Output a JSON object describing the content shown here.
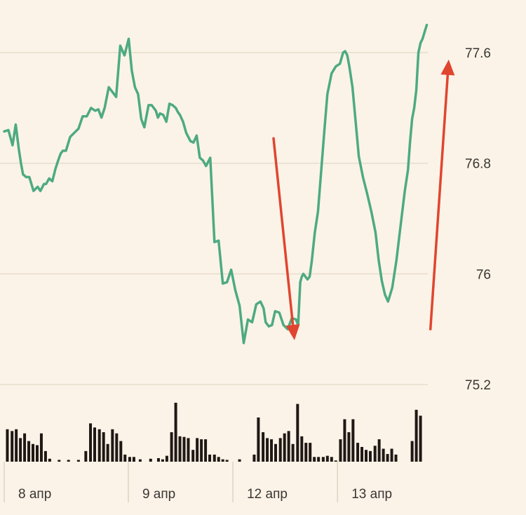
{
  "chart_data": {
    "type": "line",
    "title": "",
    "xlabel": "",
    "ylabel": "",
    "ylim": [
      75.2,
      77.6
    ],
    "yticks": [
      75.2,
      76,
      76.8,
      77.6
    ],
    "ytick_labels": [
      "75.2",
      "76",
      "76.8",
      "77.6"
    ],
    "grid": true,
    "x_label_ticks": [
      {
        "label": "8 апр",
        "x": 4
      },
      {
        "label": "9 апр",
        "x": 24
      },
      {
        "label": "12 апр",
        "x": 44
      },
      {
        "label": "13 апр",
        "x": 64
      }
    ],
    "x_range": [
      0,
      81
    ],
    "series": [
      {
        "color": "#4daa82",
        "x": [
          0,
          0.8,
          1.6,
          2.2,
          2.8,
          3.2,
          3.6,
          4.2,
          4.8,
          5.6,
          6.4,
          6.9,
          7.2,
          7.6,
          8,
          8.6,
          9.2,
          9.8,
          10.4,
          10.8,
          11.2,
          11.8,
          12.6,
          13.4,
          14.2,
          15,
          15.8,
          16.6,
          17.4,
          18,
          18.6,
          19.2,
          20,
          20.6,
          21.4,
          22.2,
          23,
          23.8,
          24.4,
          25,
          25.6,
          26.2,
          26.8,
          27.6,
          28.2,
          29,
          29.4,
          29.8,
          30.4,
          31,
          31.6,
          32.2,
          32.8,
          33.2,
          33.6,
          34.2,
          34.8,
          35.6,
          36.2,
          36.8,
          37.4,
          38,
          38.6,
          39.4,
          40.2,
          41,
          41.8,
          42.6,
          43.4,
          44.2,
          45,
          45.8,
          46.6,
          47.4,
          48.2,
          49,
          49.6,
          50,
          50.6,
          51.2,
          51.8,
          52.6,
          53.4,
          54.2,
          55,
          55.8,
          56.2,
          56.6,
          56.9,
          57.2,
          57.6,
          58,
          58.4,
          58.8,
          59.4,
          60,
          60.6,
          61.2,
          61.8,
          62.6,
          63.4,
          64.2,
          64.8,
          65.2,
          65.6,
          66,
          66.6,
          67.2,
          67.8,
          68.6,
          69.4,
          70.2,
          71,
          71.6,
          72.2,
          72.8,
          73.4,
          74.2,
          75,
          75.8,
          76.6,
          77.2,
          77.6,
          78,
          78.4,
          78.8,
          79.2,
          79.6,
          80,
          80.4,
          80.8
        ],
        "y": [
          77.03,
          77.04,
          76.93,
          77.08,
          76.9,
          76.8,
          76.72,
          76.7,
          76.7,
          76.6,
          76.63,
          76.6,
          76.62,
          76.65,
          76.65,
          76.69,
          76.67,
          76.76,
          76.83,
          76.87,
          76.89,
          76.89,
          76.99,
          77.02,
          77.05,
          77.14,
          77.14,
          77.2,
          77.18,
          77.19,
          77.13,
          77.2,
          77.35,
          77.32,
          77.28,
          77.65,
          77.58,
          77.7,
          77.47,
          77.35,
          77.3,
          77.12,
          77.06,
          77.22,
          77.22,
          77.18,
          77.13,
          77.16,
          77.15,
          77.1,
          77.23,
          77.22,
          77.2,
          77.17,
          77.15,
          77.1,
          77.02,
          76.96,
          76.95,
          77,
          76.84,
          76.82,
          76.78,
          76.84,
          76.23,
          76.24,
          75.93,
          75.94,
          76.03,
          75.88,
          75.77,
          75.5,
          75.67,
          75.65,
          75.78,
          75.8,
          75.75,
          75.65,
          75.62,
          75.63,
          75.73,
          75.72,
          75.63,
          75.6,
          75.68,
          75.67,
          75.63,
          75.94,
          75.98,
          76,
          75.98,
          75.96,
          75.98,
          76.09,
          76.3,
          76.45,
          76.74,
          77.03,
          77.3,
          77.45,
          77.5,
          77.52,
          77.6,
          77.61,
          77.58,
          77.5,
          77.35,
          77.1,
          76.85,
          76.7,
          76.58,
          76.45,
          76.3,
          76.1,
          75.95,
          75.85,
          75.8,
          75.9,
          76.1,
          76.35,
          76.6,
          76.75,
          76.95,
          77.12,
          77.2,
          77.33,
          77.6,
          77.67,
          77.7,
          77.75,
          77.8
        ]
      }
    ],
    "volume": [
      {
        "x": 0.6,
        "v": 0.55
      },
      {
        "x": 1.5,
        "v": 0.52
      },
      {
        "x": 2.3,
        "v": 0.55
      },
      {
        "x": 3.1,
        "v": 0.4
      },
      {
        "x": 3.9,
        "v": 0.48
      },
      {
        "x": 4.7,
        "v": 0.35
      },
      {
        "x": 5.5,
        "v": 0.3
      },
      {
        "x": 6.3,
        "v": 0.28
      },
      {
        "x": 7.1,
        "v": 0.48
      },
      {
        "x": 7.9,
        "v": 0.18
      },
      {
        "x": 8.7,
        "v": 0.05
      },
      {
        "x": 10.5,
        "v": 0.03
      },
      {
        "x": 12.3,
        "v": 0.03
      },
      {
        "x": 14.2,
        "v": 0.03
      },
      {
        "x": 15.6,
        "v": 0.18
      },
      {
        "x": 16.5,
        "v": 0.65
      },
      {
        "x": 17.3,
        "v": 0.58
      },
      {
        "x": 18.2,
        "v": 0.55
      },
      {
        "x": 19,
        "v": 0.5
      },
      {
        "x": 19.8,
        "v": 0.3
      },
      {
        "x": 20.7,
        "v": 0.55
      },
      {
        "x": 21.5,
        "v": 0.48
      },
      {
        "x": 22.3,
        "v": 0.35
      },
      {
        "x": 23.1,
        "v": 0.12
      },
      {
        "x": 24,
        "v": 0.08
      },
      {
        "x": 24.8,
        "v": 0.08
      },
      {
        "x": 26,
        "v": 0.04
      },
      {
        "x": 28,
        "v": 0.05
      },
      {
        "x": 29.5,
        "v": 0.06
      },
      {
        "x": 30.3,
        "v": 0.04
      },
      {
        "x": 31.1,
        "v": 0.1
      },
      {
        "x": 32,
        "v": 0.5
      },
      {
        "x": 32.8,
        "v": 1.0
      },
      {
        "x": 33.6,
        "v": 0.43
      },
      {
        "x": 34.4,
        "v": 0.42
      },
      {
        "x": 35.2,
        "v": 0.4
      },
      {
        "x": 36.1,
        "v": 0.2
      },
      {
        "x": 36.9,
        "v": 0.4
      },
      {
        "x": 37.7,
        "v": 0.38
      },
      {
        "x": 38.5,
        "v": 0.38
      },
      {
        "x": 39.3,
        "v": 0.12
      },
      {
        "x": 40.2,
        "v": 0.12
      },
      {
        "x": 41,
        "v": 0.08
      },
      {
        "x": 41.8,
        "v": 0.04
      },
      {
        "x": 42.6,
        "v": 0.03
      },
      {
        "x": 45,
        "v": 0.04
      },
      {
        "x": 47.8,
        "v": 0.12
      },
      {
        "x": 48.6,
        "v": 0.75
      },
      {
        "x": 49.5,
        "v": 0.5
      },
      {
        "x": 50.3,
        "v": 0.4
      },
      {
        "x": 51.1,
        "v": 0.38
      },
      {
        "x": 51.9,
        "v": 0.3
      },
      {
        "x": 52.8,
        "v": 0.4
      },
      {
        "x": 53.6,
        "v": 0.48
      },
      {
        "x": 54.4,
        "v": 0.52
      },
      {
        "x": 55.2,
        "v": 0.3
      },
      {
        "x": 56.1,
        "v": 0.98
      },
      {
        "x": 56.9,
        "v": 0.43
      },
      {
        "x": 57.7,
        "v": 0.32
      },
      {
        "x": 58.5,
        "v": 0.32
      },
      {
        "x": 59.3,
        "v": 0.08
      },
      {
        "x": 60.1,
        "v": 0.08
      },
      {
        "x": 61,
        "v": 0.08
      },
      {
        "x": 61.8,
        "v": 0.1
      },
      {
        "x": 62.6,
        "v": 0.08
      },
      {
        "x": 63.4,
        "v": 0.02
      },
      {
        "x": 64.3,
        "v": 0.38
      },
      {
        "x": 65.1,
        "v": 0.72
      },
      {
        "x": 65.9,
        "v": 0.5
      },
      {
        "x": 66.7,
        "v": 0.72
      },
      {
        "x": 67.6,
        "v": 0.32
      },
      {
        "x": 68.4,
        "v": 0.25
      },
      {
        "x": 69.2,
        "v": 0.2
      },
      {
        "x": 70,
        "v": 0.18
      },
      {
        "x": 70.9,
        "v": 0.27
      },
      {
        "x": 71.7,
        "v": 0.38
      },
      {
        "x": 72.5,
        "v": 0.22
      },
      {
        "x": 73.3,
        "v": 0.13
      },
      {
        "x": 74.1,
        "v": 0.22
      },
      {
        "x": 74.9,
        "v": 0.12
      },
      {
        "x": 78,
        "v": 0.35
      },
      {
        "x": 78.8,
        "v": 0.88
      },
      {
        "x": 79.6,
        "v": 0.78
      }
    ],
    "annotations": [
      {
        "type": "arrow",
        "direction": "down",
        "color": "#e04530",
        "from": {
          "x": 51.5,
          "y": 76.98
        },
        "to": {
          "x": 55.5,
          "y": 75.52
        }
      },
      {
        "type": "arrow",
        "direction": "up",
        "color": "#e04530",
        "from": {
          "x": 81.5,
          "y": 75.6
        },
        "to": {
          "x": 85,
          "y": 77.55
        }
      }
    ]
  }
}
